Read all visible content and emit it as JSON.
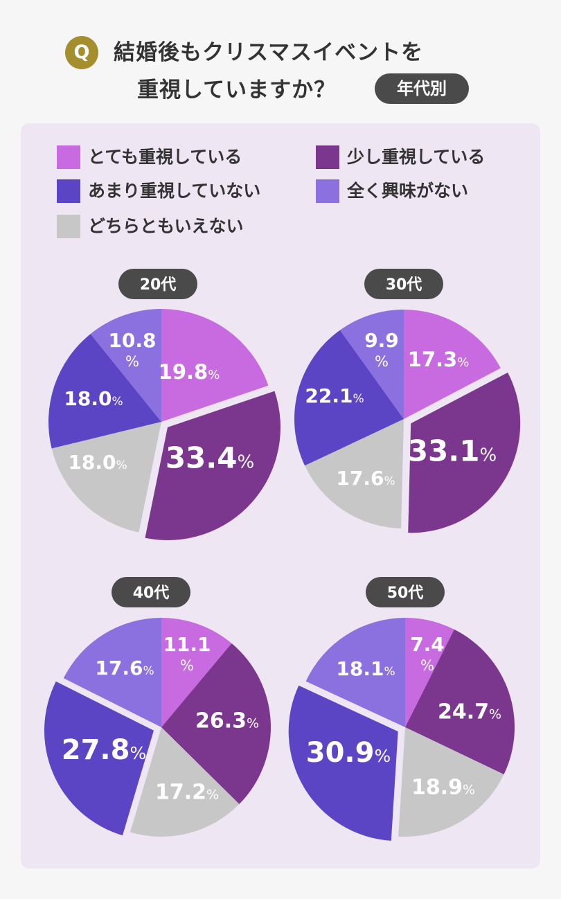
{
  "header": {
    "badge": "Q",
    "title_line1": "結婚後もクリスマスイベントを",
    "title_line2": "重視していますか？",
    "tag": "年代別"
  },
  "colors": {
    "very": "#c86ae0",
    "some": "#7b368e",
    "notmuch": "#5b45c4",
    "none": "#8b70e0",
    "neither": "#c7c7c7"
  },
  "legend": [
    {
      "key": "very",
      "label": "とても重視している"
    },
    {
      "key": "some",
      "label": "少し重視している"
    },
    {
      "key": "notmuch",
      "label": "あまり重視していない"
    },
    {
      "key": "none",
      "label": "全く興味がない"
    },
    {
      "key": "neither",
      "label": "どちらともいえない"
    }
  ],
  "chart_data": [
    {
      "type": "pie",
      "title": "20代",
      "slices": [
        {
          "key": "very",
          "value": 19.8,
          "label": "19.8"
        },
        {
          "key": "some",
          "value": 33.4,
          "label": "33.4"
        },
        {
          "key": "neither",
          "value": 18.0,
          "label": "18.0"
        },
        {
          "key": "notmuch",
          "value": 18.0,
          "label": "18.0"
        },
        {
          "key": "none",
          "value": 10.8,
          "label": "10.8"
        }
      ]
    },
    {
      "type": "pie",
      "title": "30代",
      "slices": [
        {
          "key": "very",
          "value": 17.3,
          "label": "17.3"
        },
        {
          "key": "some",
          "value": 33.1,
          "label": "33.1"
        },
        {
          "key": "neither",
          "value": 17.6,
          "label": "17.6"
        },
        {
          "key": "notmuch",
          "value": 22.1,
          "label": "22.1"
        },
        {
          "key": "none",
          "value": 9.9,
          "label": "9.9"
        }
      ]
    },
    {
      "type": "pie",
      "title": "40代",
      "slices": [
        {
          "key": "very",
          "value": 11.1,
          "label": "11.1"
        },
        {
          "key": "some",
          "value": 26.3,
          "label": "26.3"
        },
        {
          "key": "neither",
          "value": 17.2,
          "label": "17.2"
        },
        {
          "key": "notmuch",
          "value": 27.8,
          "label": "27.8"
        },
        {
          "key": "none",
          "value": 17.6,
          "label": "17.6"
        }
      ]
    },
    {
      "type": "pie",
      "title": "50代",
      "slices": [
        {
          "key": "very",
          "value": 7.4,
          "label": "7.4"
        },
        {
          "key": "some",
          "value": 24.7,
          "label": "24.7"
        },
        {
          "key": "neither",
          "value": 18.9,
          "label": "18.9"
        },
        {
          "key": "notmuch",
          "value": 30.9,
          "label": "30.9"
        },
        {
          "key": "none",
          "value": 18.1,
          "label": "18.1"
        }
      ]
    }
  ],
  "percent_sign": "%"
}
